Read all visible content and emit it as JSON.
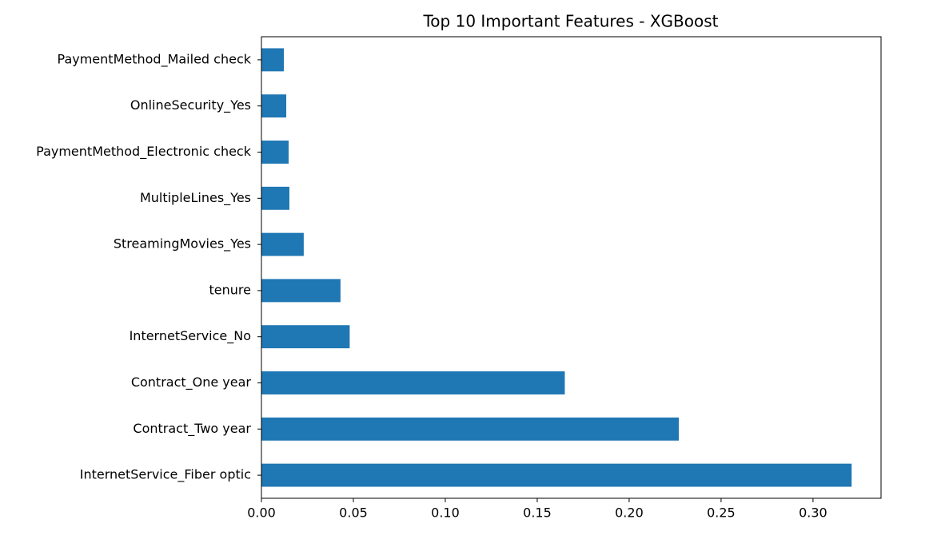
{
  "chart_data": {
    "type": "barh",
    "title": "Top 10 Important Features - XGBoost",
    "categories": [
      "InternetService_Fiber optic",
      "Contract_Two year",
      "Contract_One year",
      "InternetService_No",
      "tenure",
      "StreamingMovies_Yes",
      "MultipleLines_Yes",
      "PaymentMethod_Electronic check",
      "OnlineSecurity_Yes",
      "PaymentMethod_Mailed check"
    ],
    "values": [
      0.321,
      0.227,
      0.165,
      0.048,
      0.043,
      0.023,
      0.0152,
      0.0148,
      0.0135,
      0.0122
    ],
    "color": "#1f77b4",
    "xlim": [
      0,
      0.337
    ],
    "xticks": [
      {
        "value": 0,
        "label": "0.00"
      },
      {
        "value": 0.05,
        "label": "0.05"
      },
      {
        "value": 0.1,
        "label": "0.10"
      },
      {
        "value": 0.15,
        "label": "0.15"
      },
      {
        "value": 0.2,
        "label": "0.20"
      },
      {
        "value": 0.25,
        "label": "0.25"
      },
      {
        "value": 0.3,
        "label": "0.30"
      }
    ],
    "grid": false
  }
}
